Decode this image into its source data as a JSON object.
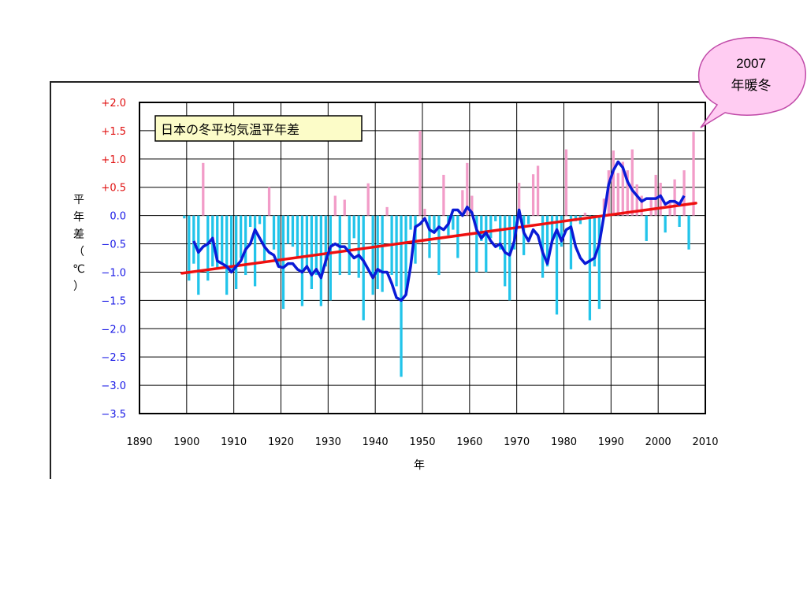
{
  "callout": {
    "line1": "2007",
    "line2": "年暖冬",
    "fill": "#ffccf2",
    "stroke": "#c04aa8"
  },
  "chart_data": {
    "type": "bar",
    "title": "日本の冬平均気温平年差",
    "xlabel": "年",
    "ylabel": "平年差（℃）",
    "xlim": [
      1890,
      2010
    ],
    "ylim": [
      -3.5,
      2.0
    ],
    "x_ticks": [
      "1890",
      "1900",
      "1910",
      "1920",
      "1930",
      "1940",
      "1950",
      "1960",
      "1970",
      "1980",
      "1990",
      "2000",
      "2010"
    ],
    "y_ticks": [
      {
        "label": "+2.0",
        "value": 2.0
      },
      {
        "label": "+1.5",
        "value": 1.5
      },
      {
        "label": "+1.0",
        "value": 1.0
      },
      {
        "label": "+0.5",
        "value": 0.5
      },
      {
        "label": "0.0",
        "value": 0.0
      },
      {
        "label": "−0.5",
        "value": -0.5
      },
      {
        "label": "−1.0",
        "value": -1.0
      },
      {
        "label": "−1.5",
        "value": -1.5
      },
      {
        "label": "−2.0",
        "value": -2.0
      },
      {
        "label": "−2.5",
        "value": -2.5
      },
      {
        "label": "−3.0",
        "value": -3.0
      },
      {
        "label": "−3.5",
        "value": -3.5
      }
    ],
    "grid": true,
    "colors": {
      "positive": "#f29cc8",
      "negative": "#22c4ea",
      "smoothed": "#0a1ad6",
      "trend": "#ee1010",
      "pos_label": "#e01010",
      "neg_label": "#1a1ae6"
    },
    "bar_years": [
      1899,
      1900,
      1901,
      1902,
      1903,
      1904,
      1905,
      1906,
      1907,
      1908,
      1909,
      1910,
      1911,
      1912,
      1913,
      1914,
      1915,
      1916,
      1917,
      1918,
      1919,
      1920,
      1921,
      1922,
      1923,
      1924,
      1925,
      1926,
      1927,
      1928,
      1929,
      1930,
      1931,
      1932,
      1933,
      1934,
      1935,
      1936,
      1937,
      1938,
      1939,
      1940,
      1941,
      1942,
      1943,
      1944,
      1945,
      1946,
      1947,
      1948,
      1949,
      1950,
      1951,
      1952,
      1953,
      1954,
      1955,
      1956,
      1957,
      1958,
      1959,
      1960,
      1961,
      1962,
      1963,
      1964,
      1965,
      1966,
      1967,
      1968,
      1969,
      1970,
      1971,
      1972,
      1973,
      1974,
      1975,
      1976,
      1977,
      1978,
      1979,
      1980,
      1981,
      1982,
      1983,
      1984,
      1985,
      1986,
      1987,
      1988,
      1989,
      1990,
      1991,
      1992,
      1993,
      1994,
      1995,
      1996,
      1997,
      1998,
      1999,
      2000,
      2001,
      2002,
      2003,
      2004,
      2005,
      2006,
      2007
    ],
    "bar_values": [
      -0.05,
      -1.15,
      -0.85,
      -1.4,
      0.93,
      -1.15,
      -0.9,
      -0.95,
      -0.85,
      -1.4,
      -0.95,
      -1.3,
      -0.75,
      -1.05,
      -0.2,
      -1.25,
      -0.15,
      -0.8,
      0.5,
      -0.6,
      -0.9,
      -1.65,
      -0.5,
      -0.55,
      -0.75,
      -1.6,
      -0.9,
      -1.3,
      -1.05,
      -1.6,
      -0.9,
      -1.5,
      0.35,
      -1.05,
      0.28,
      -1.05,
      -0.4,
      -1.1,
      -1.85,
      0.57,
      -1.4,
      -1.3,
      -1.35,
      0.15,
      -1.05,
      -1.25,
      -2.85,
      -1.4,
      -0.25,
      -0.85,
      1.5,
      0.12,
      -0.75,
      -0.3,
      -1.05,
      0.72,
      -0.35,
      -0.25,
      -0.75,
      0.45,
      0.93,
      0.35,
      -1.0,
      -0.45,
      -1.0,
      -0.4,
      -0.1,
      -0.6,
      -1.25,
      -1.5,
      -0.6,
      0.58,
      -0.7,
      -0.15,
      0.73,
      0.88,
      -1.1,
      -0.9,
      -0.5,
      -1.75,
      -0.55,
      1.17,
      -0.95,
      -0.1,
      -0.15,
      0.05,
      -1.85,
      -0.9,
      -1.65,
      0.3,
      0.8,
      1.15,
      0.75,
      0.95,
      0.8,
      1.17,
      0.55,
      0.35,
      -0.45,
      0.3,
      0.72,
      0.58,
      -0.3,
      0.25,
      0.64,
      -0.2,
      0.8,
      -0.6,
      1.48
    ],
    "smoothed": {
      "x": [
        1901,
        1902,
        1903,
        1904,
        1905,
        1906,
        1907,
        1908,
        1909,
        1910,
        1911,
        1912,
        1913,
        1914,
        1915,
        1916,
        1917,
        1918,
        1919,
        1920,
        1921,
        1922,
        1923,
        1924,
        1925,
        1926,
        1927,
        1928,
        1929,
        1930,
        1931,
        1932,
        1933,
        1934,
        1935,
        1936,
        1937,
        1938,
        1939,
        1940,
        1941,
        1942,
        1943,
        1944,
        1945,
        1946,
        1947,
        1948,
        1949,
        1950,
        1951,
        1952,
        1953,
        1954,
        1955,
        1956,
        1957,
        1958,
        1959,
        1960,
        1961,
        1962,
        1963,
        1964,
        1965,
        1966,
        1967,
        1968,
        1969,
        1970,
        1971,
        1972,
        1973,
        1974,
        1975,
        1976,
        1977,
        1978,
        1979,
        1980,
        1981,
        1982,
        1983,
        1984,
        1985,
        1986,
        1987,
        1988,
        1989,
        1990,
        1991,
        1992,
        1993,
        1994,
        1995,
        1996,
        1997,
        1998,
        1999,
        2000,
        2001,
        2002,
        2003,
        2004,
        2005
      ],
      "y": [
        -0.45,
        -0.65,
        -0.55,
        -0.5,
        -0.4,
        -0.8,
        -0.85,
        -0.9,
        -1.0,
        -0.9,
        -0.8,
        -0.6,
        -0.5,
        -0.25,
        -0.4,
        -0.55,
        -0.65,
        -0.7,
        -0.9,
        -0.92,
        -0.85,
        -0.85,
        -0.95,
        -1.0,
        -0.9,
        -1.05,
        -0.95,
        -1.1,
        -0.8,
        -0.55,
        -0.5,
        -0.55,
        -0.55,
        -0.65,
        -0.75,
        -0.7,
        -0.8,
        -0.95,
        -1.1,
        -0.95,
        -1.0,
        -1.0,
        -1.2,
        -1.45,
        -1.5,
        -1.4,
        -0.9,
        -0.2,
        -0.15,
        -0.05,
        -0.25,
        -0.3,
        -0.2,
        -0.25,
        -0.15,
        0.1,
        0.1,
        0.0,
        0.15,
        0.05,
        -0.25,
        -0.4,
        -0.3,
        -0.45,
        -0.55,
        -0.5,
        -0.65,
        -0.7,
        -0.45,
        0.1,
        -0.3,
        -0.45,
        -0.25,
        -0.35,
        -0.65,
        -0.85,
        -0.45,
        -0.25,
        -0.45,
        -0.25,
        -0.2,
        -0.55,
        -0.75,
        -0.85,
        -0.8,
        -0.75,
        -0.5,
        0.0,
        0.55,
        0.8,
        0.95,
        0.85,
        0.6,
        0.45,
        0.35,
        0.25,
        0.3,
        0.3,
        0.3,
        0.35,
        0.2,
        0.25,
        0.25,
        0.2,
        0.35
      ]
    },
    "trend": {
      "x": [
        1899,
        2008
      ],
      "y": [
        -1.02,
        0.22
      ]
    }
  }
}
